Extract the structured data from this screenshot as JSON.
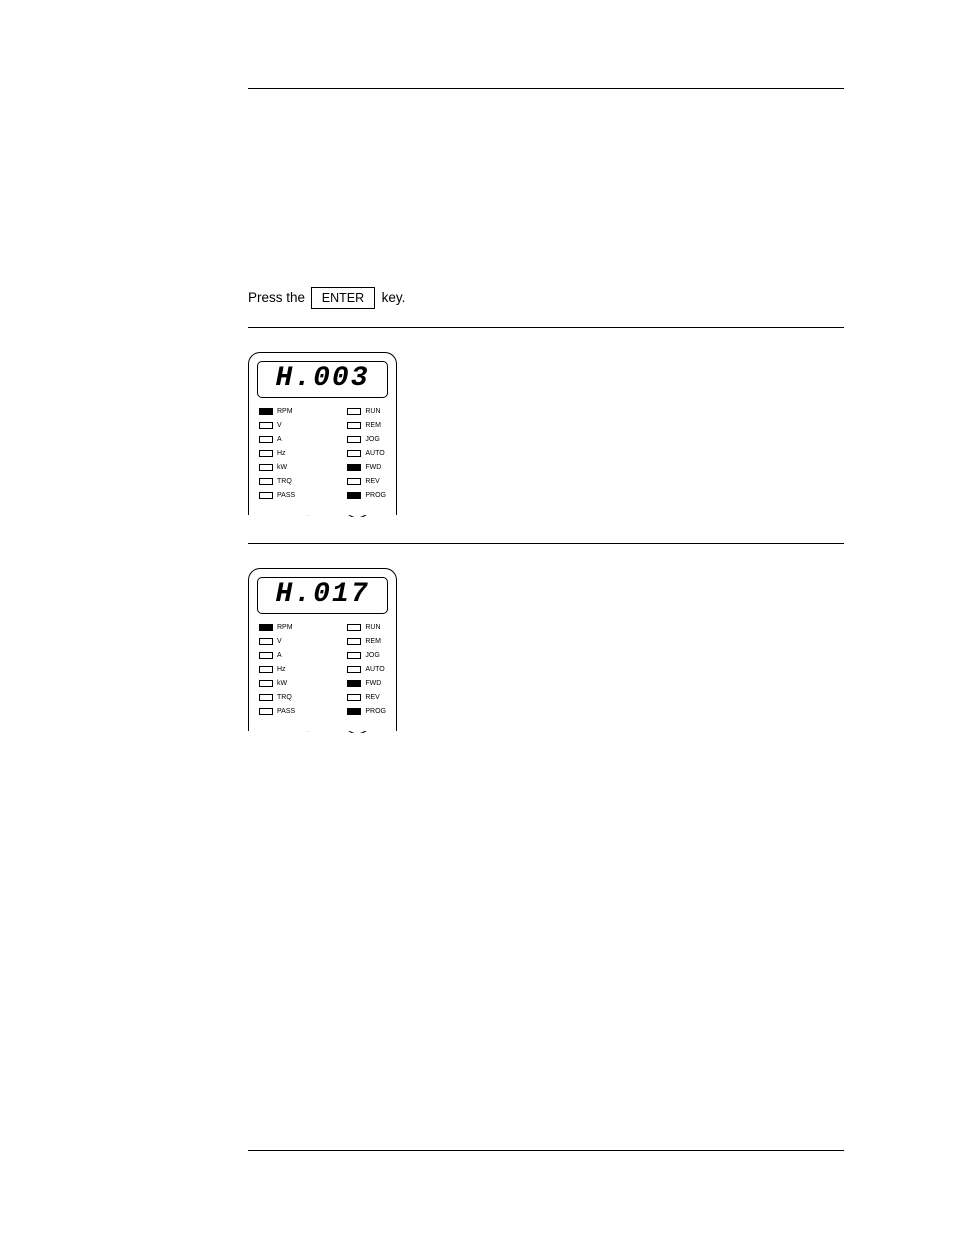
{
  "step1": {
    "text_before_key": "Press the ",
    "key_label": "ENTER",
    "text_after_key": " key."
  },
  "panel1": {
    "display": "H.003",
    "left_indicators": [
      {
        "label": "RPM",
        "filled": true
      },
      {
        "label": "V",
        "filled": false
      },
      {
        "label": "A",
        "filled": false
      },
      {
        "label": "Hz",
        "filled": false
      },
      {
        "label": "kW",
        "filled": false
      },
      {
        "label": "TRQ",
        "filled": false
      },
      {
        "label": "PASS",
        "filled": false
      }
    ],
    "right_indicators": [
      {
        "label": "RUN",
        "filled": false
      },
      {
        "label": "REM",
        "filled": false
      },
      {
        "label": "JOG",
        "filled": false
      },
      {
        "label": "AUTO",
        "filled": false
      },
      {
        "label": "FWD",
        "filled": true
      },
      {
        "label": "REV",
        "filled": false
      },
      {
        "label": "PROG",
        "filled": true
      }
    ]
  },
  "panel2": {
    "display": "H.017",
    "left_indicators": [
      {
        "label": "RPM",
        "filled": true
      },
      {
        "label": "V",
        "filled": false
      },
      {
        "label": "A",
        "filled": false
      },
      {
        "label": "Hz",
        "filled": false
      },
      {
        "label": "kW",
        "filled": false
      },
      {
        "label": "TRQ",
        "filled": false
      },
      {
        "label": "PASS",
        "filled": false
      }
    ],
    "right_indicators": [
      {
        "label": "RUN",
        "filled": false
      },
      {
        "label": "REM",
        "filled": false
      },
      {
        "label": "JOG",
        "filled": false
      },
      {
        "label": "AUTO",
        "filled": false
      },
      {
        "label": "FWD",
        "filled": true
      },
      {
        "label": "REV",
        "filled": false
      },
      {
        "label": "PROG",
        "filled": true
      }
    ]
  }
}
